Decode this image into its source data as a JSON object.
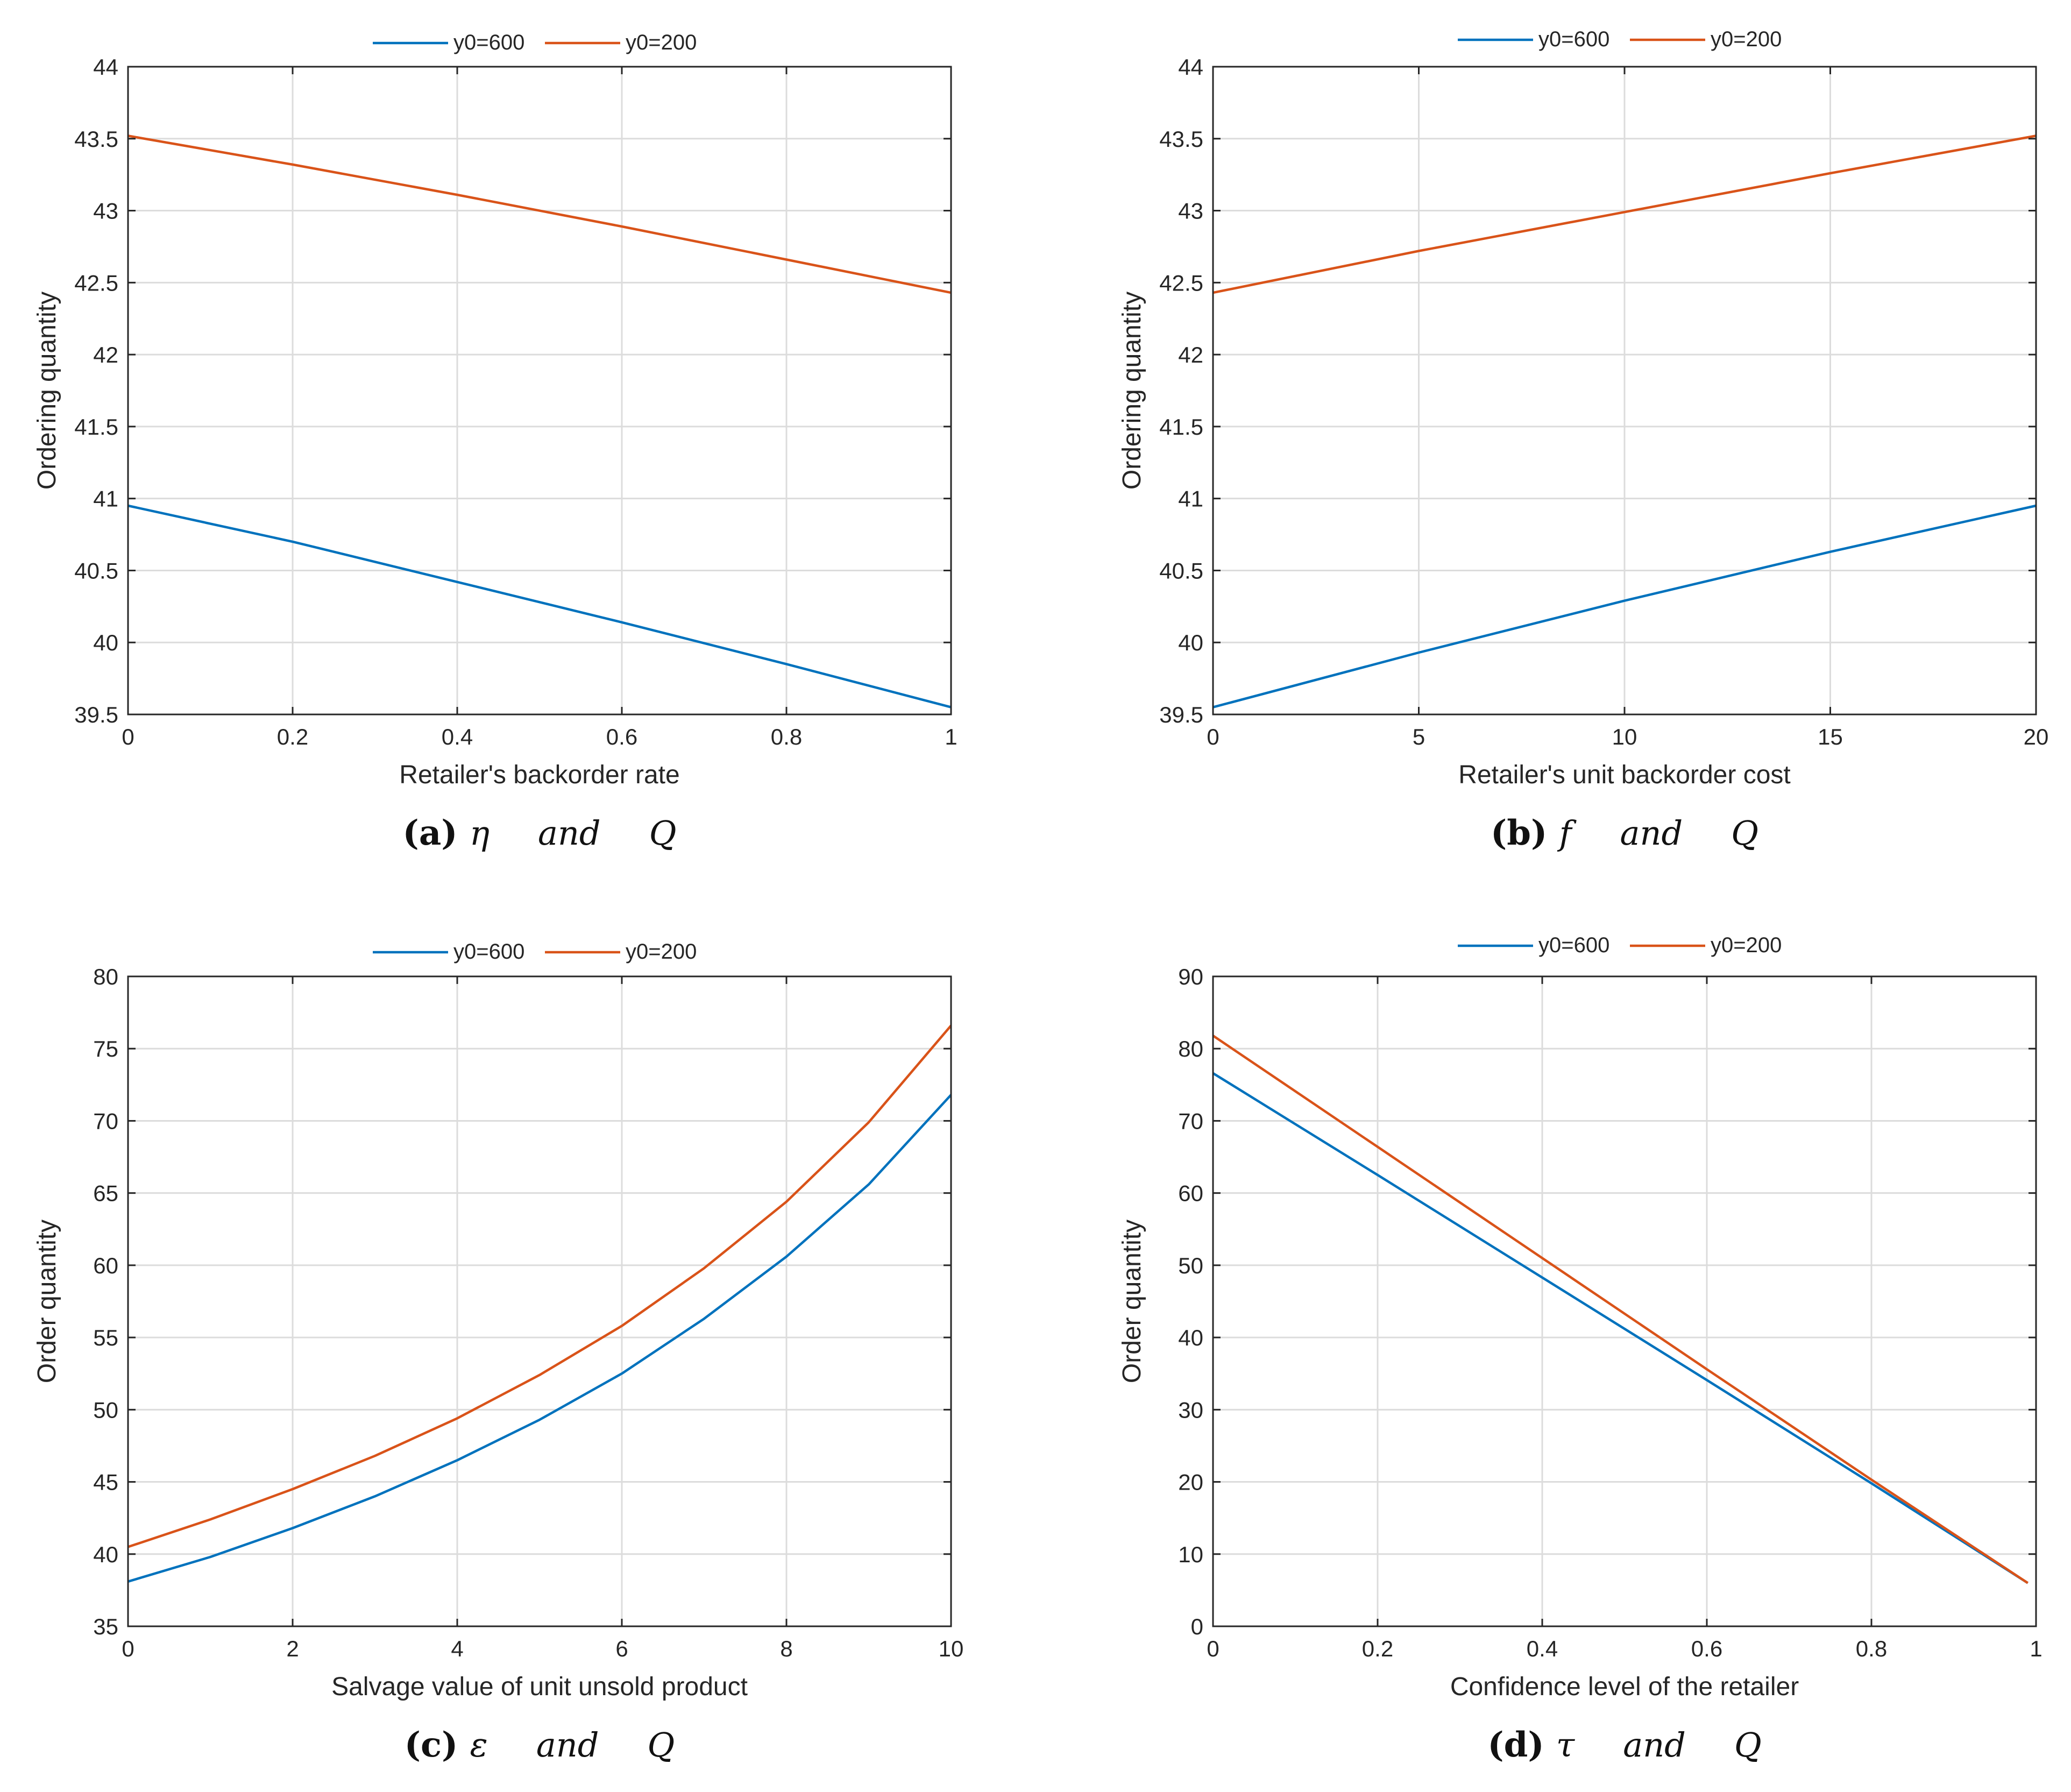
{
  "colors": {
    "series1": "#0072BD",
    "series2": "#D95319",
    "grid": "#dcdcdc",
    "axis": "#262626"
  },
  "chart_data": [
    {
      "id": "a",
      "type": "line",
      "xlabel": "Retailer's backorder rate",
      "ylabel": "Ordering quantity",
      "xlim": [
        0,
        1
      ],
      "ylim": [
        39.5,
        44
      ],
      "xticks": [
        0,
        0.2,
        0.4,
        0.6,
        0.8,
        1
      ],
      "xtick_labels": [
        "0",
        "0.2",
        "0.4",
        "0.6",
        "0.8",
        "1"
      ],
      "yticks": [
        39.5,
        40,
        40.5,
        41,
        41.5,
        42,
        42.5,
        43,
        43.5,
        44
      ],
      "ytick_labels": [
        "39.5",
        "40",
        "40.5",
        "41",
        "41.5",
        "42",
        "42.5",
        "43",
        "43.5",
        "44"
      ],
      "grid": true,
      "legend": "top-center",
      "caption": {
        "letter": "(a)",
        "symbol": "η",
        "and": "and",
        "q": "Q"
      },
      "series": [
        {
          "name": "y0=600",
          "x": [
            0,
            0.2,
            0.4,
            0.6,
            0.8,
            1
          ],
          "y": [
            40.95,
            40.7,
            40.42,
            40.14,
            39.85,
            39.55
          ]
        },
        {
          "name": "y0=200",
          "x": [
            0,
            0.2,
            0.4,
            0.6,
            0.8,
            1
          ],
          "y": [
            43.52,
            43.32,
            43.11,
            42.89,
            42.66,
            42.43
          ]
        }
      ]
    },
    {
      "id": "b",
      "type": "line",
      "xlabel": "Retailer's unit backorder cost",
      "ylabel": "Ordering quantity",
      "xlim": [
        0,
        20
      ],
      "ylim": [
        39.5,
        44
      ],
      "xticks": [
        0,
        5,
        10,
        15,
        20
      ],
      "xtick_labels": [
        "0",
        "5",
        "10",
        "15",
        "20"
      ],
      "yticks": [
        39.5,
        40,
        40.5,
        41,
        41.5,
        42,
        42.5,
        43,
        43.5,
        44
      ],
      "ytick_labels": [
        "39.5",
        "40",
        "40.5",
        "41",
        "41.5",
        "42",
        "42.5",
        "43",
        "43.5",
        "44"
      ],
      "grid": true,
      "legend": "top-center",
      "caption": {
        "letter": "(b)",
        "symbol": "f",
        "and": "and",
        "q": "Q"
      },
      "series": [
        {
          "name": "y0=600",
          "x": [
            0,
            5,
            10,
            15,
            20
          ],
          "y": [
            39.55,
            39.93,
            40.29,
            40.63,
            40.95
          ]
        },
        {
          "name": "y0=200",
          "x": [
            0,
            5,
            10,
            15,
            20
          ],
          "y": [
            42.43,
            42.72,
            42.99,
            43.26,
            43.52
          ]
        }
      ]
    },
    {
      "id": "c",
      "type": "line",
      "xlabel": "Salvage value of unit unsold product",
      "ylabel": "Order quantity",
      "xlim": [
        0,
        10
      ],
      "ylim": [
        35,
        80
      ],
      "xticks": [
        0,
        2,
        4,
        6,
        8,
        10
      ],
      "xtick_labels": [
        "0",
        "2",
        "4",
        "6",
        "8",
        "10"
      ],
      "yticks": [
        35,
        40,
        45,
        50,
        55,
        60,
        65,
        70,
        75,
        80
      ],
      "ytick_labels": [
        "35",
        "40",
        "45",
        "50",
        "55",
        "60",
        "65",
        "70",
        "75",
        "80"
      ],
      "grid": true,
      "legend": "top-center",
      "caption": {
        "letter": "(c)",
        "symbol": "ε",
        "and": "and",
        "q": "Q"
      },
      "series": [
        {
          "name": "y0=600",
          "x": [
            0,
            1,
            2,
            3,
            4,
            5,
            6,
            7,
            8,
            9,
            10
          ],
          "y": [
            38.1,
            39.8,
            41.8,
            44.0,
            46.5,
            49.3,
            52.5,
            56.3,
            60.6,
            65.6,
            71.8
          ]
        },
        {
          "name": "y0=200",
          "x": [
            0,
            1,
            2,
            3,
            4,
            5,
            6,
            7,
            8,
            9,
            10
          ],
          "y": [
            40.5,
            42.4,
            44.5,
            46.8,
            49.4,
            52.4,
            55.8,
            59.8,
            64.4,
            69.9,
            76.6
          ]
        }
      ]
    },
    {
      "id": "d",
      "type": "line",
      "xlabel": "Confidence level of the retailer",
      "ylabel": "Order quantity",
      "xlim": [
        0,
        1
      ],
      "ylim": [
        0,
        90
      ],
      "xticks": [
        0,
        0.2,
        0.4,
        0.6,
        0.8,
        1
      ],
      "xtick_labels": [
        "0",
        "0.2",
        "0.4",
        "0.6",
        "0.8",
        "1"
      ],
      "yticks": [
        0,
        10,
        20,
        30,
        40,
        50,
        60,
        70,
        80,
        90
      ],
      "ytick_labels": [
        "0",
        "10",
        "20",
        "30",
        "40",
        "50",
        "60",
        "70",
        "80",
        "90"
      ],
      "grid": true,
      "legend": "top-center",
      "caption": {
        "letter": "(d)",
        "symbol": "τ",
        "and": "and",
        "q": "Q"
      },
      "series": [
        {
          "name": "y0=600",
          "x": [
            0,
            0.2,
            0.4,
            0.6,
            0.8,
            0.99
          ],
          "y": [
            76.6,
            62.5,
            48.3,
            34.1,
            19.8,
            6.0
          ]
        },
        {
          "name": "y0=200",
          "x": [
            0,
            0.2,
            0.4,
            0.6,
            0.8,
            0.99
          ],
          "y": [
            81.8,
            66.4,
            51.0,
            35.6,
            20.3,
            6.0
          ]
        }
      ]
    }
  ]
}
